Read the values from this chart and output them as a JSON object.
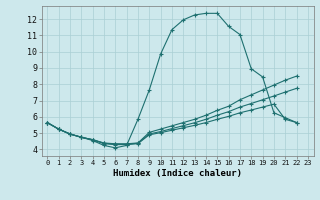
{
  "xlabel": "Humidex (Indice chaleur)",
  "bg_color": "#cde8ec",
  "line_color": "#1e7070",
  "grid_color": "#aacfd4",
  "xlim": [
    -0.5,
    23.5
  ],
  "ylim": [
    3.6,
    12.8
  ],
  "yticks": [
    4,
    5,
    6,
    7,
    8,
    9,
    10,
    11,
    12
  ],
  "xticks": [
    0,
    1,
    2,
    3,
    4,
    5,
    6,
    7,
    8,
    9,
    10,
    11,
    12,
    13,
    14,
    15,
    16,
    17,
    18,
    19,
    20,
    21,
    22,
    23
  ],
  "curve_peak": [
    5.65,
    5.25,
    4.95,
    4.75,
    4.55,
    4.25,
    4.1,
    4.25,
    5.85,
    7.65,
    9.85,
    11.35,
    11.95,
    12.25,
    12.35,
    12.35,
    11.55,
    11.05,
    8.95,
    8.45,
    6.25,
    5.95,
    5.65
  ],
  "curve_upper": [
    5.65,
    5.25,
    4.95,
    4.75,
    4.6,
    4.4,
    4.35,
    4.35,
    4.4,
    5.05,
    5.25,
    5.45,
    5.65,
    5.85,
    6.1,
    6.4,
    6.65,
    7.05,
    7.35,
    7.65,
    7.95,
    8.25,
    8.5
  ],
  "curve_mid": [
    5.65,
    5.25,
    4.95,
    4.75,
    4.6,
    4.38,
    4.32,
    4.32,
    4.38,
    4.95,
    5.1,
    5.28,
    5.46,
    5.64,
    5.85,
    6.1,
    6.32,
    6.6,
    6.82,
    7.05,
    7.28,
    7.52,
    7.75
  ],
  "curve_bottom": [
    5.65,
    5.25,
    4.95,
    4.75,
    4.6,
    4.36,
    4.3,
    4.3,
    4.36,
    4.9,
    5.03,
    5.18,
    5.33,
    5.48,
    5.65,
    5.85,
    6.03,
    6.25,
    6.42,
    6.6,
    6.78,
    5.85,
    5.65
  ]
}
